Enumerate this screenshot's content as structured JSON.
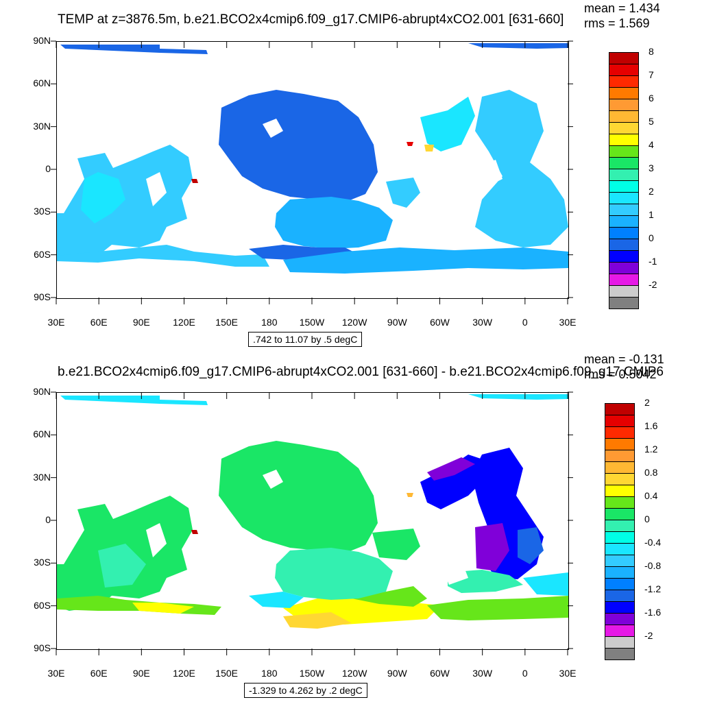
{
  "chart_data": [
    {
      "type": "heatmap",
      "title": "TEMP at z=3876.5m, b.e21.BCO2x4cmip6.f09_g17.CMIP6-abrupt4xCO2.001 [631-660]",
      "stats": {
        "mean": "mean = 1.434",
        "rms": "rms = 1.569"
      },
      "contour_info": ".742 to 11.07 by .5 degC",
      "y_ticks": [
        "90N",
        "60N",
        "30N",
        "0",
        "30S",
        "60S",
        "90S"
      ],
      "x_ticks": [
        "30E",
        "60E",
        "90E",
        "120E",
        "150E",
        "180",
        "150W",
        "120W",
        "90W",
        "60W",
        "30W",
        "0",
        "30E"
      ],
      "colorbar_labels": [
        "8",
        "7",
        "6",
        "5",
        "4",
        "3",
        "2",
        "1",
        "0",
        "-1",
        "-2"
      ],
      "colorbar_colors": [
        "#c00000",
        "#e60000",
        "#ff2a00",
        "#ff7a00",
        "#ff9a33",
        "#ffb833",
        "#ffd733",
        "#ffff00",
        "#66e61a",
        "#1ae666",
        "#33f0b0",
        "#00ffe6",
        "#1ae6ff",
        "#33ccff",
        "#1ab2ff",
        "#0080ff",
        "#1a66e6",
        "#0000ff",
        "#8000d9",
        "#e619e6",
        "#cccccc",
        "#808080"
      ],
      "units": "degC",
      "xlim": [
        30,
        390
      ],
      "ylim": [
        -90,
        90
      ]
    },
    {
      "type": "heatmap",
      "title": "b.e21.BCO2x4cmip6.f09_g17.CMIP6-abrupt4xCO2.001 [631-660] - b.e21.BCO2x4cmip6.f09_g17.CMIP6",
      "stats": {
        "mean": "mean = -0.131",
        "rms": "rms = 0.5042"
      },
      "contour_info": "-1.329 to 4.262 by .2 degC",
      "y_ticks": [
        "90N",
        "60N",
        "30N",
        "0",
        "30S",
        "60S",
        "90S"
      ],
      "x_ticks": [
        "30E",
        "60E",
        "90E",
        "120E",
        "150E",
        "180",
        "150W",
        "120W",
        "90W",
        "60W",
        "30W",
        "0",
        "30E"
      ],
      "colorbar_labels": [
        "2",
        "1.6",
        "1.2",
        "0.8",
        "0.4",
        "0",
        "-0.4",
        "-0.8",
        "-1.2",
        "-1.6",
        "-2"
      ],
      "colorbar_colors": [
        "#c00000",
        "#e60000",
        "#ff2a00",
        "#ff7a00",
        "#ff9a33",
        "#ffb833",
        "#ffd733",
        "#ffff00",
        "#66e61a",
        "#1ae666",
        "#33f0b0",
        "#00ffe6",
        "#1ae6ff",
        "#33ccff",
        "#1ab2ff",
        "#0080ff",
        "#1a66e6",
        "#0000ff",
        "#8000d9",
        "#e619e6",
        "#cccccc",
        "#808080"
      ],
      "units": "degC",
      "xlim": [
        30,
        390
      ],
      "ylim": [
        -90,
        90
      ]
    }
  ]
}
